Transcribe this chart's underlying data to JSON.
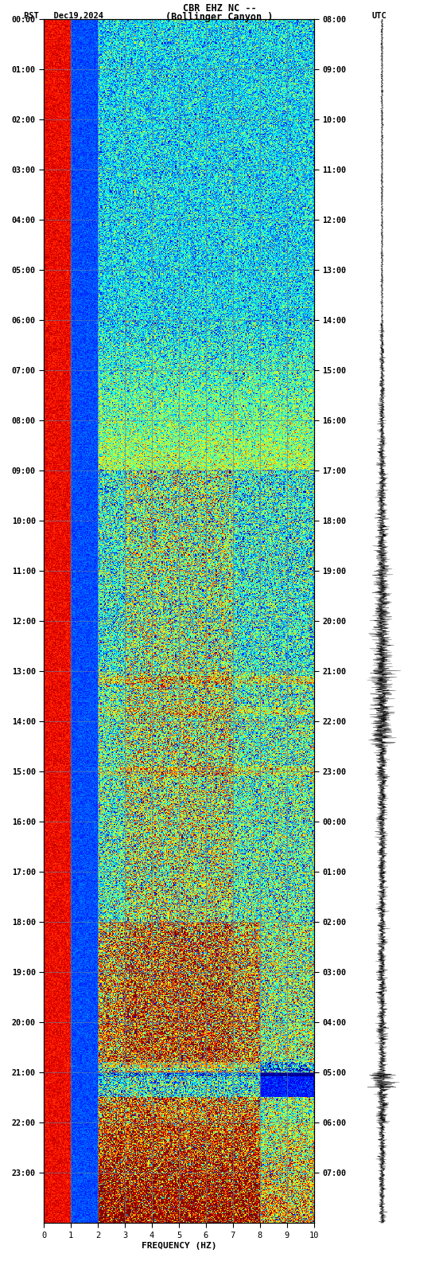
{
  "title_line1": "CBR EHZ NC --",
  "title_line2": "(Bollinger Canyon )",
  "left_label": "PST   Dec19,2024",
  "right_label": "UTC",
  "xlabel": "FREQUENCY (HZ)",
  "freq_min": 0,
  "freq_max": 10,
  "freq_ticks": [
    0,
    1,
    2,
    3,
    4,
    5,
    6,
    7,
    8,
    9,
    10
  ],
  "pst_times": [
    "00:00",
    "01:00",
    "02:00",
    "03:00",
    "04:00",
    "05:00",
    "06:00",
    "07:00",
    "08:00",
    "09:00",
    "10:00",
    "11:00",
    "12:00",
    "13:00",
    "14:00",
    "15:00",
    "16:00",
    "17:00",
    "18:00",
    "19:00",
    "20:00",
    "21:00",
    "22:00",
    "23:00"
  ],
  "utc_times": [
    "08:00",
    "09:00",
    "10:00",
    "11:00",
    "12:00",
    "13:00",
    "14:00",
    "15:00",
    "16:00",
    "17:00",
    "18:00",
    "19:00",
    "20:00",
    "21:00",
    "22:00",
    "23:00",
    "00:00",
    "01:00",
    "02:00",
    "03:00",
    "04:00",
    "05:00",
    "06:00",
    "07:00"
  ],
  "fig_bg": "#ffffff",
  "colormap": "jet_r",
  "n_freq": 300,
  "n_time": 1440,
  "seed": 42,
  "grid_color": "#6080A0",
  "grid_alpha": 0.7,
  "waveform_color": "#000000",
  "waveform_bg": "#ffffff",
  "blue_stripe_color": "#00008B",
  "dark_red_stripe_color": "#8B0000",
  "spec_vmin": 0.0,
  "spec_vmax": 1.0
}
